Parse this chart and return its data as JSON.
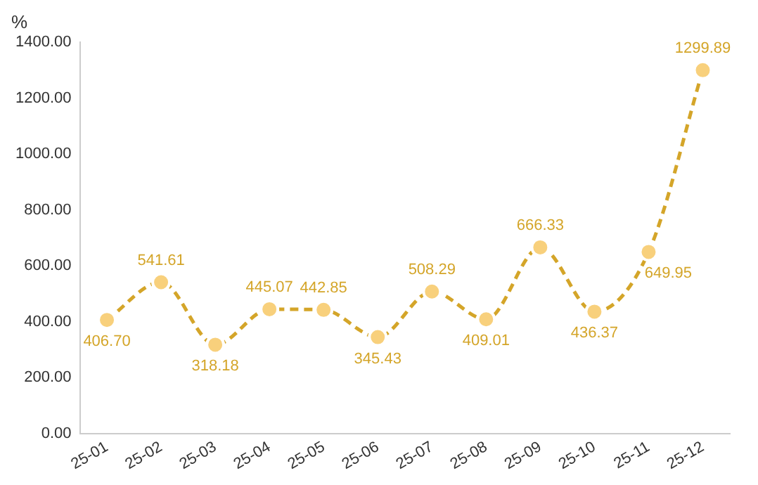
{
  "chart_data": {
    "type": "line",
    "ylabel": "%",
    "categories": [
      "25-01",
      "25-02",
      "25-03",
      "25-04",
      "25-05",
      "25-06",
      "25-07",
      "25-08",
      "25-09",
      "25-10",
      "25-11",
      "25-12"
    ],
    "series": [
      {
        "color": "#d4a529",
        "values": [
          406.7,
          541.61,
          318.18,
          445.07,
          442.85,
          345.43,
          508.29,
          409.01,
          666.33,
          436.37,
          649.95,
          1299.89
        ],
        "value_labels": [
          "406.70",
          "541.61",
          "318.18",
          "445.07",
          "442.85",
          "345.43",
          "508.29",
          "409.01",
          "666.33",
          "436.37",
          "649.95",
          "1299.89"
        ]
      }
    ],
    "ylim": [
      0,
      1400
    ],
    "yticks": [
      {
        "value": 0,
        "label": "0.00"
      },
      {
        "value": 200,
        "label": "200.00"
      },
      {
        "value": 400,
        "label": "400.00"
      },
      {
        "value": 600,
        "label": "600.00"
      },
      {
        "value": 800,
        "label": "800.00"
      },
      {
        "value": 1000,
        "label": "1000.00"
      },
      {
        "value": 1200,
        "label": "1200.00"
      },
      {
        "value": 1400,
        "label": "1400.00"
      }
    ],
    "grid": false,
    "legend": false,
    "marker": "circle",
    "line_style": "dashed"
  }
}
